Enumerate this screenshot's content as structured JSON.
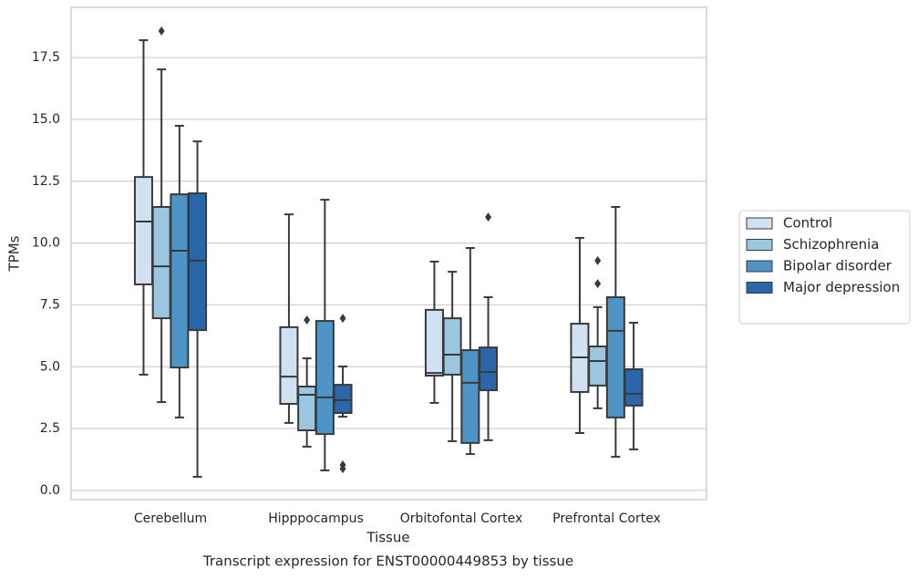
{
  "chart_data": {
    "type": "box",
    "title": "Transcript expression for ENST00000449853 by tissue",
    "xlabel": "Tissue",
    "ylabel": "TPMs",
    "categories": [
      "Cerebellum",
      "Hipppocampus",
      "Orbitofontal Cortex",
      "Prefrontal Cortex"
    ],
    "ylim": [
      -0.37,
      19.53
    ],
    "yticks": [
      {
        "value": 0,
        "label": "0.0"
      },
      2.5,
      {
        "value": 5,
        "label": "5.0"
      },
      7.5,
      {
        "value": 10,
        "label": "10.0"
      },
      12.5,
      {
        "value": 15,
        "label": "15.0"
      },
      17.5
    ],
    "grid": true,
    "legend": "right",
    "series": [
      {
        "name": "Control",
        "color": "#d0e1f2",
        "boxes": [
          {
            "low": 4.68,
            "q1": 8.33,
            "median": 10.87,
            "q3": 12.67,
            "high": 18.2,
            "outliers": []
          },
          {
            "low": 2.73,
            "q1": 3.5,
            "median": 4.6,
            "q3": 6.6,
            "high": 11.16,
            "outliers": []
          },
          {
            "low": 3.54,
            "q1": 4.64,
            "median": 4.75,
            "q3": 7.3,
            "high": 9.25,
            "outliers": []
          },
          {
            "low": 2.32,
            "q1": 3.98,
            "median": 5.38,
            "q3": 6.74,
            "high": 10.21,
            "outliers": []
          }
        ]
      },
      {
        "name": "Schizophrenia",
        "color": "#9ac6df",
        "boxes": [
          {
            "low": 3.57,
            "q1": 6.96,
            "median": 9.06,
            "q3": 11.46,
            "high": 17.02,
            "outliers": [
              18.57
            ]
          },
          {
            "low": 1.77,
            "q1": 2.43,
            "median": 3.87,
            "q3": 4.2,
            "high": 5.34,
            "outliers": [
              6.89
            ]
          },
          {
            "low": 1.99,
            "q1": 4.68,
            "median": 5.49,
            "q3": 6.96,
            "high": 8.84,
            "outliers": []
          },
          {
            "low": 3.32,
            "q1": 4.24,
            "median": 5.23,
            "q3": 5.82,
            "high": 7.41,
            "outliers": [
              9.29,
              8.36
            ]
          }
        ]
      },
      {
        "name": "Bipolar disorder",
        "color": "#4e94c6",
        "boxes": [
          {
            "low": 2.95,
            "q1": 4.97,
            "median": 9.69,
            "q3": 11.97,
            "high": 14.74,
            "outliers": []
          },
          {
            "low": 0.81,
            "q1": 2.28,
            "median": 3.76,
            "q3": 6.85,
            "high": 11.75,
            "outliers": []
          },
          {
            "low": 1.47,
            "q1": 1.92,
            "median": 4.35,
            "q3": 5.67,
            "high": 9.8,
            "outliers": []
          },
          {
            "low": 1.36,
            "q1": 2.95,
            "median": 6.45,
            "q3": 7.81,
            "high": 11.46,
            "outliers": []
          }
        ]
      },
      {
        "name": "Major depression",
        "color": "#2a66aa",
        "boxes": [
          {
            "low": 0.55,
            "q1": 6.48,
            "median": 9.29,
            "q3": 12.01,
            "high": 14.11,
            "outliers": []
          },
          {
            "low": 2.98,
            "q1": 3.13,
            "median": 3.65,
            "q3": 4.27,
            "high": 5.01,
            "outliers": [
              6.96,
              1.03,
              0.88
            ]
          },
          {
            "low": 2.03,
            "q1": 4.05,
            "median": 4.79,
            "q3": 5.78,
            "high": 7.81,
            "outliers": [
              11.05
            ]
          },
          {
            "low": 1.66,
            "q1": 3.43,
            "median": 3.91,
            "q3": 4.9,
            "high": 6.78,
            "outliers": []
          }
        ]
      }
    ]
  }
}
